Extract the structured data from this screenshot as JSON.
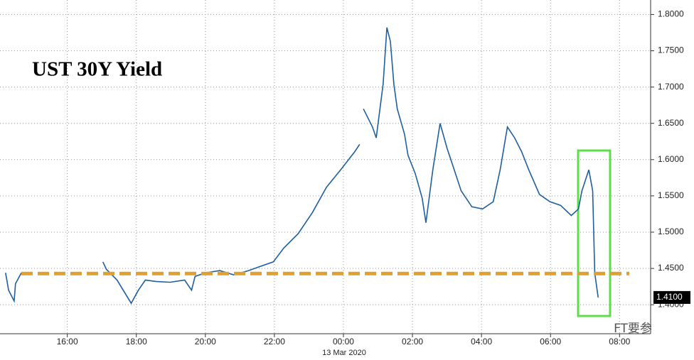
{
  "chart_data": {
    "type": "line",
    "title": "UST 30Y Yield",
    "x_sublabel": "13 Mar 2020",
    "watermark": "FT要参",
    "x": [
      14.21,
      14.3,
      14.46,
      14.5,
      14.67,
      15.8,
      17.03,
      17.13,
      17.44,
      17.85,
      18.06,
      18.26,
      18.57,
      18.98,
      19.4,
      19.6,
      19.7,
      20.01,
      20.42,
      20.83,
      21.25,
      21.66,
      21.97,
      22.27,
      22.69,
      23.1,
      23.51,
      23.92,
      24.33,
      24.47,
      24.52,
      24.58,
      24.84,
      24.95,
      25.15,
      25.26,
      25.36,
      25.46,
      25.56,
      25.77,
      25.87,
      26.08,
      26.28,
      26.39,
      26.59,
      26.8,
      27.0,
      27.21,
      27.41,
      27.72,
      28.03,
      28.34,
      28.54,
      28.75,
      28.96,
      29.16,
      29.37,
      29.68,
      29.98,
      30.29,
      30.6,
      30.81,
      30.91,
      31.11,
      31.22,
      31.28,
      31.38
    ],
    "series": [
      {
        "name": "UST 30Y",
        "color": "#1f5f9e",
        "values": [
          1.444,
          1.42,
          1.405,
          1.429,
          1.444,
          null,
          1.459,
          1.449,
          1.434,
          1.402,
          1.42,
          1.434,
          1.432,
          1.431,
          1.434,
          1.42,
          1.439,
          1.444,
          1.447,
          1.441,
          1.447,
          1.454,
          1.459,
          1.478,
          1.498,
          1.527,
          1.562,
          1.586,
          1.611,
          1.621,
          null,
          1.67,
          1.645,
          1.63,
          1.704,
          1.782,
          1.763,
          1.704,
          1.67,
          1.635,
          1.606,
          1.581,
          1.547,
          1.513,
          1.586,
          1.65,
          1.616,
          1.586,
          1.557,
          1.535,
          1.532,
          1.542,
          1.586,
          1.645,
          1.63,
          1.611,
          1.586,
          1.552,
          1.542,
          1.537,
          1.523,
          1.532,
          1.557,
          1.586,
          1.557,
          1.444,
          1.41
        ]
      }
    ],
    "last_price": {
      "value": 1.41,
      "label": "1.4100"
    },
    "reference_line": {
      "value": 1.443,
      "color": "#e0a030"
    },
    "xlim": [
      14.05,
      32.9
    ],
    "xticks": [
      {
        "value": 16,
        "label": "16:00"
      },
      {
        "value": 18,
        "label": "18:00"
      },
      {
        "value": 20,
        "label": "20:00"
      },
      {
        "value": 22,
        "label": "22:00"
      },
      {
        "value": 24,
        "label": "00:00"
      },
      {
        "value": 26,
        "label": "02:00"
      },
      {
        "value": 28,
        "label": "04:00"
      },
      {
        "value": 30,
        "label": "06:00"
      },
      {
        "value": 32,
        "label": "08:00"
      }
    ],
    "ylim": [
      1.36,
      1.82
    ],
    "yticks": [
      {
        "value": 1.4,
        "label": "1.4000"
      },
      {
        "value": 1.45,
        "label": "1.4500"
      },
      {
        "value": 1.5,
        "label": "1.5000"
      },
      {
        "value": 1.55,
        "label": "1.5500"
      },
      {
        "value": 1.6,
        "label": "1.6000"
      },
      {
        "value": 1.65,
        "label": "1.6500"
      },
      {
        "value": 1.7,
        "label": "1.7000"
      },
      {
        "value": 1.75,
        "label": "1.7500"
      },
      {
        "value": 1.8,
        "label": "1.8000"
      }
    ],
    "grid": true,
    "y_axis_side": "right"
  }
}
